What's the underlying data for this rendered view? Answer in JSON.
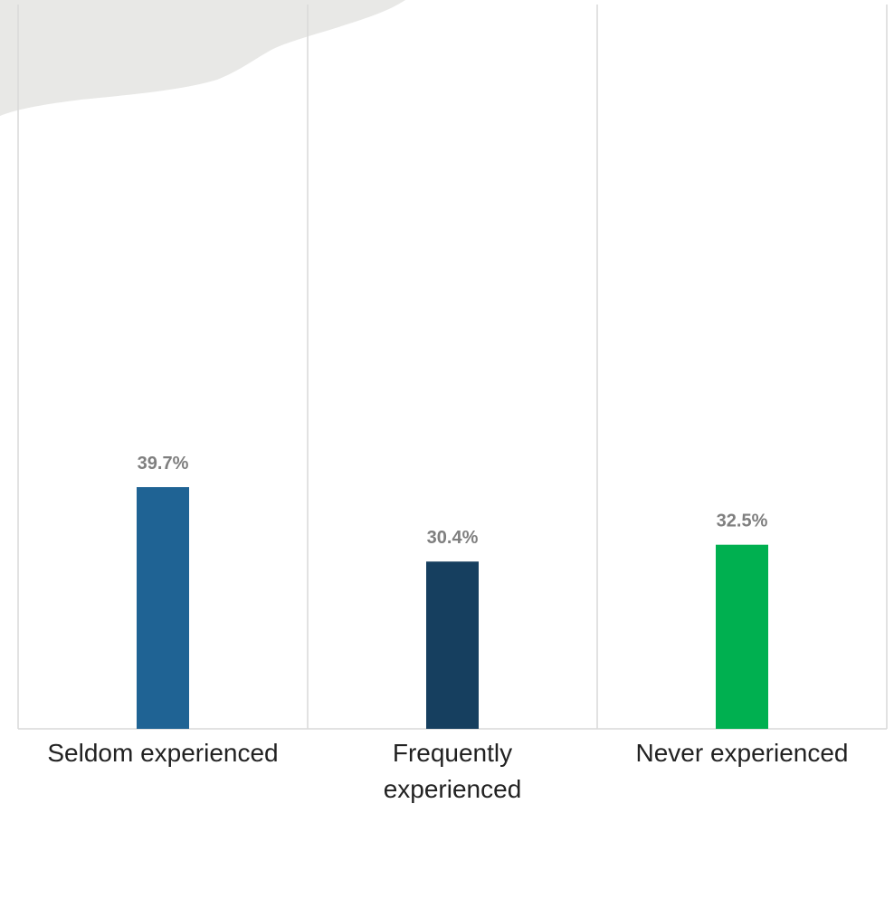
{
  "chart_data": {
    "type": "bar",
    "categories": [
      "Seldom experienced",
      "Frequently experienced",
      "Never experienced"
    ],
    "values": [
      39.7,
      30.4,
      32.5
    ],
    "value_labels": [
      "39.7%",
      "30.4%",
      "32.5%"
    ],
    "colors": [
      "#1f6394",
      "#163f5f",
      "#00b050"
    ],
    "ylim": [
      9.5,
      100
    ]
  }
}
